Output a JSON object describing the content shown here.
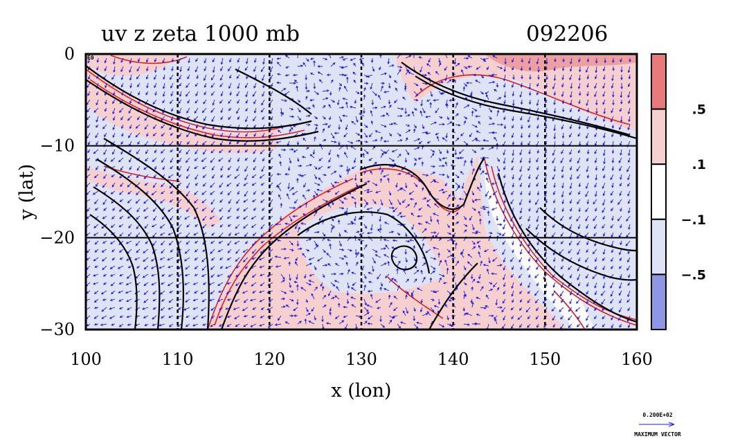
{
  "plot": {
    "title": "uv z zeta 1000 mb",
    "time_label": "092206",
    "xlabel": "x (lon)",
    "ylabel": "y (lat)",
    "x_range": [
      100,
      160
    ],
    "y_range": [
      -30,
      0
    ],
    "x_ticks": [
      {
        "value": 100,
        "label": "100"
      },
      {
        "value": 110,
        "label": "110"
      },
      {
        "value": 120,
        "label": "120"
      },
      {
        "value": 130,
        "label": "130"
      },
      {
        "value": 140,
        "label": "140"
      },
      {
        "value": 150,
        "label": "150"
      },
      {
        "value": 160,
        "label": "160"
      }
    ],
    "y_ticks": [
      {
        "value": 0,
        "label": "0"
      },
      {
        "value": -10,
        "label": "−10"
      },
      {
        "value": -20,
        "label": "−20"
      },
      {
        "value": -30,
        "label": "−30"
      }
    ],
    "corner_label": "E0",
    "grid": true,
    "layers": [
      "wind vectors (blue)",
      "geopotential height contours (black)",
      "relative vorticity zeta (shaded, red/blue)"
    ]
  },
  "colorbar": {
    "bins": [
      {
        "color": "#e87a7a"
      },
      {
        "color": "#f6cfcf"
      },
      {
        "color": "#ffffff"
      },
      {
        "color": "#dfe3f6"
      },
      {
        "color": "#8f97e4"
      }
    ],
    "labels": [
      ".5",
      ".1",
      "−.1",
      "−.5"
    ]
  },
  "colors": {
    "vector": "#1a1ae6",
    "contour_pos": "#e21b1b",
    "height_contour": "#000000",
    "land_fill": "#f6cfcf",
    "neg_fill": "#dfe3f6"
  },
  "reference_vector": {
    "value_label": "0.200E+02",
    "caption": "MAXIMUM VECTOR"
  }
}
